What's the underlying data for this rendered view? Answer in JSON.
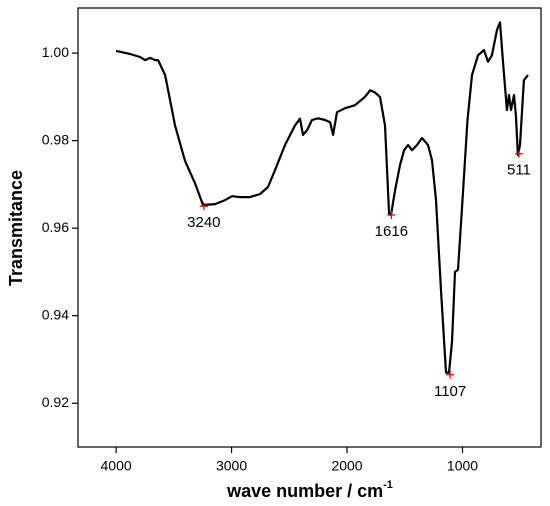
{
  "chart_data": {
    "type": "line",
    "x_label": "wave number / cm",
    "x_label_sup": "-1",
    "y_label": "Transmitance",
    "xlim": [
      4330,
      320
    ],
    "ylim": [
      0.91,
      1.0103
    ],
    "xticks": [
      4000,
      3000,
      2000,
      1000
    ],
    "yticks": [
      {
        "value": 0.92,
        "label": "0.92"
      },
      {
        "value": 0.94,
        "label": "0.94"
      },
      {
        "value": 0.96,
        "label": "0.96"
      },
      {
        "value": 0.98,
        "label": "0.98"
      },
      {
        "value": 1.0,
        "label": "1.00"
      }
    ],
    "series": [
      {
        "color": "#000000",
        "x": [
          4000,
          3879,
          3792,
          3749,
          3706,
          3662,
          3636,
          3576,
          3489,
          3403,
          3316,
          3247,
          3143,
          3056,
          2996,
          2926,
          2840,
          2753,
          2684,
          2623,
          2537,
          2450,
          2407,
          2381,
          2346,
          2303,
          2251,
          2190,
          2147,
          2121,
          2087,
          2017,
          1931,
          1844,
          1801,
          1758,
          1714,
          1671,
          1636,
          1619,
          1584,
          1541,
          1506,
          1471,
          1437,
          1394,
          1351,
          1299,
          1264,
          1229,
          1186,
          1143,
          1117,
          1091,
          1065,
          1039,
          1000,
          957,
          918,
          866,
          814,
          779,
          745,
          701,
          675,
          649,
          615,
          597,
          580,
          554,
          537,
          520,
          502,
          468,
          433
        ],
        "values": [
          1.0005,
          0.9998,
          0.9991,
          0.9984,
          0.9989,
          0.9984,
          0.9984,
          0.995,
          0.9834,
          0.9754,
          0.9702,
          0.9653,
          0.9655,
          0.9664,
          0.9673,
          0.9671,
          0.9671,
          0.9678,
          0.9694,
          0.9733,
          0.979,
          0.9835,
          0.985,
          0.9813,
          0.9824,
          0.9847,
          0.9851,
          0.9847,
          0.9842,
          0.9813,
          0.9865,
          0.9874,
          0.9881,
          0.99,
          0.9915,
          0.991,
          0.99,
          0.9835,
          0.9632,
          0.963,
          0.9687,
          0.9744,
          0.9778,
          0.979,
          0.9778,
          0.979,
          0.9806,
          0.979,
          0.9755,
          0.9664,
          0.9458,
          0.927,
          0.927,
          0.934,
          0.95,
          0.9505,
          0.9664,
          0.9847,
          0.995,
          0.9995,
          1.0007,
          0.998,
          0.9995,
          1.0053,
          1.007,
          0.998,
          0.987,
          0.9904,
          0.987,
          0.9904,
          0.9858,
          0.9767,
          0.979,
          0.9938,
          0.995
        ]
      }
    ],
    "annotations": [
      {
        "text": "3240",
        "x": 3240,
        "y": 0.965
      },
      {
        "text": "1616",
        "x": 1616,
        "y": 0.963
      },
      {
        "text": "1107",
        "x": 1107,
        "y": 0.9265
      },
      {
        "text": "511",
        "x": 511,
        "y": 0.977
      }
    ]
  }
}
